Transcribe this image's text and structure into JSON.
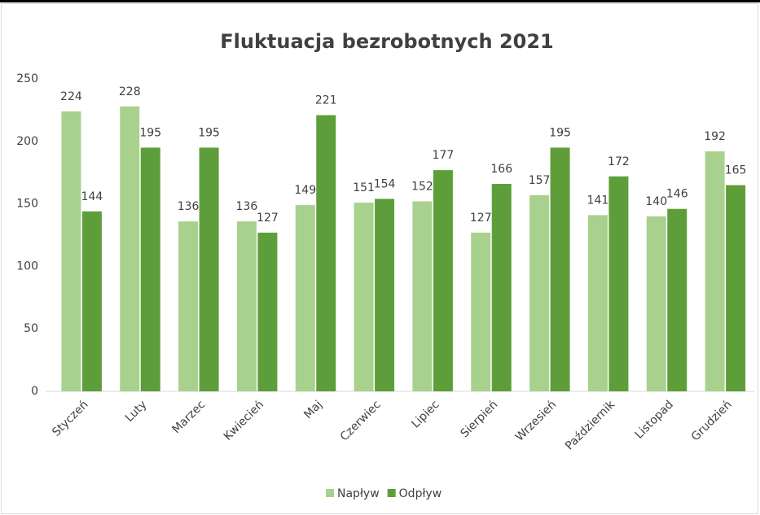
{
  "chart_data": {
    "type": "bar",
    "title": "Fluktuacja bezrobotnych 2021",
    "categories": [
      "Styczeń",
      "Luty",
      "Marzec",
      "Kwiecień",
      "Maj",
      "Czerwiec",
      "Lipiec",
      "Sierpień",
      "Wrzesień",
      "Październik",
      "Listopad",
      "Grudzień"
    ],
    "series": [
      {
        "name": "Napływ",
        "color": "#a9d18e",
        "values": [
          224,
          228,
          136,
          136,
          149,
          151,
          152,
          127,
          157,
          141,
          140,
          192
        ]
      },
      {
        "name": "Odpływ",
        "color": "#5e9e3a",
        "values": [
          144,
          195,
          195,
          127,
          221,
          154,
          177,
          166,
          195,
          172,
          146,
          165
        ]
      }
    ],
    "ylim": [
      0,
      250
    ],
    "yticks": [
      0,
      50,
      100,
      150,
      200,
      250
    ],
    "grid": false,
    "legend": "bottom"
  }
}
